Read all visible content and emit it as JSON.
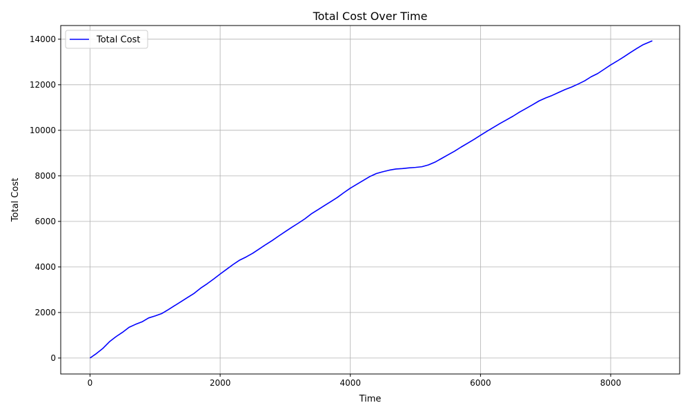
{
  "chart_data": {
    "type": "line",
    "title": "Total Cost Over Time",
    "xlabel": "Time",
    "ylabel": "Total Cost",
    "xlim": [
      -450,
      9060
    ],
    "ylim": [
      -700,
      14600
    ],
    "xticks": [
      0,
      2000,
      4000,
      6000,
      8000
    ],
    "yticks": [
      0,
      2000,
      4000,
      6000,
      8000,
      10000,
      12000,
      14000
    ],
    "grid": true,
    "legend_position": "top-left",
    "series": [
      {
        "name": "Total Cost",
        "color": "#0000ff",
        "x": [
          0,
          100,
          200,
          300,
          400,
          500,
          600,
          700,
          800,
          900,
          1000,
          1100,
          1200,
          1300,
          1400,
          1500,
          1600,
          1700,
          1800,
          1900,
          2000,
          2100,
          2200,
          2300,
          2400,
          2500,
          2600,
          2700,
          2800,
          2900,
          3000,
          3100,
          3200,
          3300,
          3400,
          3500,
          3600,
          3700,
          3800,
          3900,
          4000,
          4100,
          4200,
          4300,
          4400,
          4500,
          4600,
          4700,
          4800,
          4900,
          5000,
          5100,
          5200,
          5300,
          5400,
          5500,
          5600,
          5700,
          5800,
          5900,
          6000,
          6100,
          6200,
          6300,
          6400,
          6500,
          6600,
          6700,
          6800,
          6900,
          7000,
          7100,
          7200,
          7300,
          7400,
          7500,
          7600,
          7700,
          7800,
          7900,
          8000,
          8100,
          8200,
          8300,
          8400,
          8500,
          8640
        ],
        "y": [
          0,
          200,
          430,
          720,
          940,
          1130,
          1350,
          1480,
          1590,
          1760,
          1850,
          1950,
          2120,
          2300,
          2480,
          2660,
          2840,
          3070,
          3260,
          3470,
          3690,
          3900,
          4110,
          4300,
          4440,
          4600,
          4790,
          4980,
          5160,
          5360,
          5550,
          5740,
          5920,
          6110,
          6330,
          6510,
          6690,
          6870,
          7050,
          7260,
          7460,
          7630,
          7800,
          7970,
          8100,
          8180,
          8250,
          8300,
          8320,
          8350,
          8370,
          8400,
          8480,
          8600,
          8760,
          8920,
          9080,
          9260,
          9430,
          9600,
          9780,
          9960,
          10130,
          10300,
          10460,
          10620,
          10800,
          10960,
          11120,
          11290,
          11420,
          11530,
          11660,
          11790,
          11900,
          12030,
          12170,
          12350,
          12490,
          12680,
          12870,
          13040,
          13220,
          13410,
          13590,
          13760,
          13930
        ]
      }
    ]
  }
}
